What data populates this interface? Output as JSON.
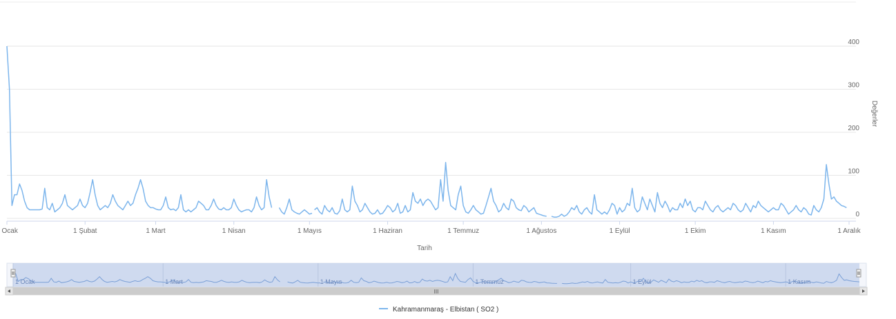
{
  "chart_data": {
    "type": "line",
    "xlabel": "Tarih",
    "ylabel": "Değerler",
    "ylim": [
      0,
      400
    ],
    "yticks": [
      0,
      100,
      200,
      300,
      400
    ],
    "grid": true,
    "legend_position": "bottom-center",
    "series_color": "#7cb5ec",
    "x_tick_labels": [
      "1 Ocak",
      "1 Şubat",
      "1 Mart",
      "1 Nisan",
      "1 Mayıs",
      "1 Haziran",
      "1 Temmuz",
      "1 Ağustos",
      "1 Eylül",
      "1 Ekim",
      "1 Kasım",
      "1 Aralık"
    ],
    "navigator_labels": [
      "1 Ocak",
      "1 Mart",
      "1 Mayıs",
      "1 Temmuz",
      "1 Eylül",
      "1 Kasım"
    ],
    "navigator_scrollbar_grip": "III",
    "series": [
      {
        "name": "Kahramanmaraş - Elbistan ( SO2 )",
        "segments": [
          {
            "start_day": 0,
            "values": [
              400,
              300,
              30,
              55,
              55,
              80,
              65,
              40,
              25,
              20,
              20,
              20,
              20,
              20,
              22,
              70,
              25,
              20,
              35,
              15,
              20,
              25,
              35,
              55,
              30,
              25,
              20,
              25,
              30,
              45,
              30,
              25,
              35,
              60,
              90,
              55,
              30,
              20,
              25,
              30,
              25,
              35,
              55,
              40,
              30,
              25,
              20,
              30,
              40,
              30,
              35,
              55,
              70,
              90,
              70,
              40,
              30,
              25,
              25,
              22,
              20,
              20,
              30,
              50,
              25,
              20,
              22,
              18,
              25,
              55,
              20,
              15,
              20,
              15,
              20,
              25,
              40,
              35,
              30,
              20,
              20,
              30,
              45,
              30,
              22,
              20,
              25,
              20,
              20,
              25,
              45,
              30,
              20,
              15,
              18,
              20,
              20,
              15,
              25,
              50,
              30,
              20,
              25,
              90,
              50,
              25
            ]
          },
          {
            "start_day": 108,
            "values": [
              25,
              15,
              10,
              25,
              45,
              20,
              15,
              12,
              10,
              15,
              20,
              15,
              10,
              12
            ]
          },
          {
            "start_day": 122,
            "values": [
              20,
              25,
              15,
              10,
              30,
              20,
              15,
              25,
              12,
              10,
              18,
              45,
              20,
              15,
              20,
              75,
              40,
              30,
              15,
              20,
              35,
              25,
              15,
              10,
              12,
              20,
              10,
              12,
              20,
              30,
              25,
              15,
              20,
              35,
              12,
              15,
              30,
              15,
              20,
              60,
              40,
              35,
              45,
              30,
              40,
              45,
              40,
              30,
              20,
              25,
              90,
              40,
              130,
              65,
              30,
              25,
              20,
              55,
              75,
              30,
              15,
              12,
              20,
              30,
              20,
              15,
              10,
              12,
              30,
              50,
              70,
              40,
              30,
              15,
              20,
              35,
              25,
              20,
              45,
              40,
              25,
              20,
              18,
              30,
              25,
              15,
              20,
              25,
              12,
              10,
              8,
              6,
              5
            ]
          },
          {
            "start_day": 216,
            "values": [
              5,
              3,
              3,
              5,
              10,
              5,
              8,
              15,
              25,
              20,
              30,
              15,
              10,
              20,
              25,
              15,
              10,
              55,
              20,
              15,
              10,
              15,
              10,
              20,
              35,
              30,
              10,
              25,
              15,
              20,
              35,
              30,
              70,
              25,
              15,
              20,
              50,
              35,
              20,
              45,
              30,
              15,
              60,
              35,
              25,
              40,
              30,
              15,
              25,
              20,
              20,
              35,
              25,
              45,
              30,
              40,
              20,
              15,
              25,
              25,
              20,
              40,
              30,
              20,
              15,
              25,
              30,
              20,
              15,
              20,
              25,
              20,
              35,
              30,
              20,
              15,
              20,
              35,
              25,
              15,
              30,
              25,
              40,
              30,
              25,
              20,
              15,
              20,
              25,
              20,
              20,
              35,
              30,
              20,
              10,
              15,
              20,
              30,
              20,
              15,
              25,
              20,
              10,
              8,
              30,
              20,
              15,
              25,
              45,
              125,
              80,
              45,
              50,
              40,
              35,
              30,
              28,
              25
            ]
          }
        ]
      }
    ]
  }
}
